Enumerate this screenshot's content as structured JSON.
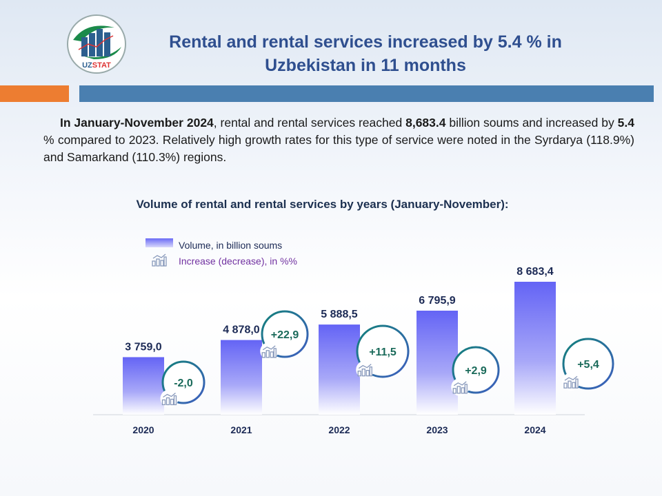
{
  "header": {
    "title": "Rental and rental services increased by 5.4 % in Uzbekistan in 11 months",
    "logo_text": "UZSTAT"
  },
  "paragraph": {
    "p1": "In January-November 2024",
    "p2": ", rental and rental services reached ",
    "p3": "8,683.4",
    "p4": " billion soums and increased by ",
    "p5": "5.4",
    "p6": " % compared to 2023. Relatively high growth rates for this type of service were noted in the Syrdarya (118.9%) and Samarkand (110.3%) regions."
  },
  "colors": {
    "bar_top": "#6464f5",
    "bar_bottom": "#ffffff",
    "ring": "#1a8a7a",
    "value_text": "#1c2a55",
    "pct_text": "#1a6a5a"
  },
  "chart_data": {
    "type": "bar",
    "title": "Volume of rental and rental services by years (January-November):",
    "categories": [
      "2020",
      "2021",
      "2022",
      "2023",
      "2024"
    ],
    "series": [
      {
        "name": "Volume,  in billion  soums",
        "values": [
          3759.0,
          4878.0,
          5888.5,
          6795.9,
          8683.4
        ],
        "labels": [
          "3 759,0",
          "4 878,0",
          "5 888,5",
          "6 795,9",
          "8 683,4"
        ]
      },
      {
        "name": "Increase (decrease),  in %%",
        "values": [
          -2.0,
          22.9,
          11.5,
          2.9,
          5.4
        ],
        "labels": [
          "-2,0",
          "+22,9",
          "+11,5",
          "+2,9",
          "+5,4"
        ]
      }
    ],
    "ylim": [
      0,
      8683.4
    ],
    "legend": "top-left"
  }
}
